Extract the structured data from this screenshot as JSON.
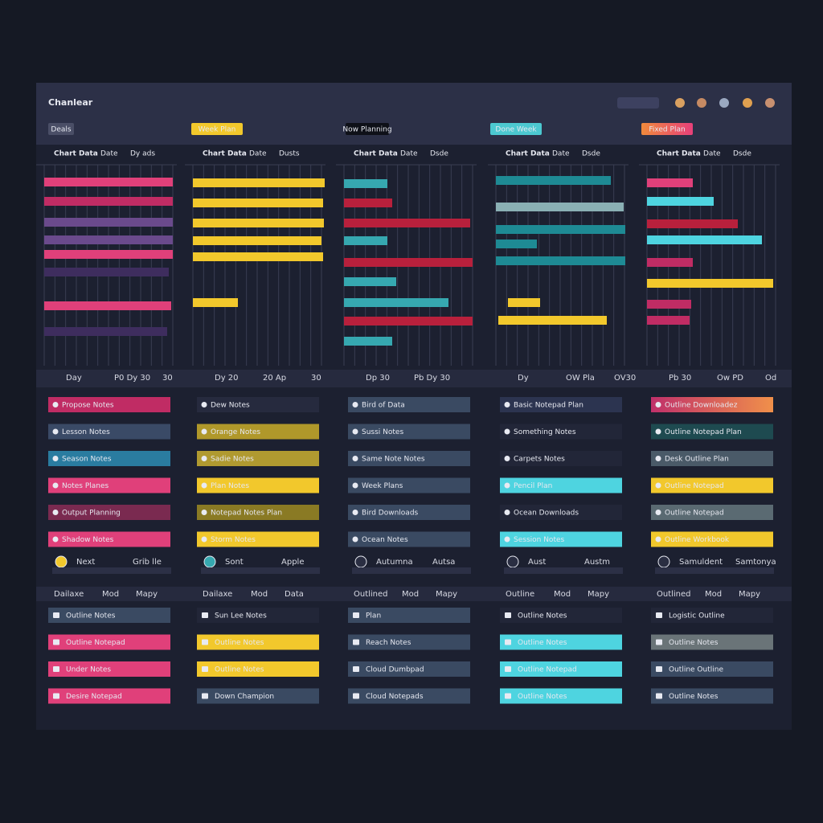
{
  "header": {
    "title": "Chanlear",
    "tabs": [
      "Deals",
      "Week Plan",
      "Now Planning",
      "Done Week",
      "Fixed Plan"
    ]
  },
  "columns": [
    {
      "heading": [
        "Chart Data",
        "Date",
        "Dy ads"
      ],
      "axis": [
        "Day",
        "P0 Dy 30",
        "30"
      ],
      "tasks": [
        "Propose Notes",
        "Lesson Notes",
        "Season Notes",
        "Notes Planes",
        "Output Planning",
        "Shadow Notes"
      ],
      "footer": [
        "Next",
        "Grib lle"
      ],
      "subheader": [
        "Dailaxe",
        "Mod",
        "Mapy"
      ],
      "items": [
        "Outline Notes",
        "Outline Notepad",
        "Under Notes",
        "Desire Notepad"
      ]
    },
    {
      "heading": [
        "Chart Data",
        "Date",
        "Dusts"
      ],
      "axis": [
        "Dy 20",
        "20 Ap",
        "30"
      ],
      "tasks": [
        "Dew Notes",
        "Orange Notes",
        "Sadie Notes",
        "Plan Notes",
        "Notepad Notes Plan",
        "Storm Notes"
      ],
      "footer": [
        "Sont",
        "Apple"
      ],
      "subheader": [
        "Dailaxe",
        "Mod",
        "Data"
      ],
      "items": [
        "Sun Lee Notes",
        "Outline Notes",
        "Outline Notes",
        "Down Champion"
      ]
    },
    {
      "heading": [
        "Chart Data",
        "Date",
        "Dsde"
      ],
      "axis": [
        "Dp 30",
        "Pb Dy 30"
      ],
      "tasks": [
        "Bird of Data",
        "Sussi Notes",
        "Same Note Notes",
        "Week Plans",
        "Bird Downloads",
        "Ocean Notes"
      ],
      "footer": [
        "Autumna",
        "Autsa"
      ],
      "subheader": [
        "Outlined",
        "Mod",
        "Mapy"
      ],
      "items": [
        "Plan",
        "Reach Notes",
        "Cloud Dumbpad",
        "Cloud Notepads"
      ]
    },
    {
      "heading": [
        "Chart Data",
        "Date",
        "Dsde"
      ],
      "axis": [
        "Dy",
        "OW Pla",
        "OV30"
      ],
      "tasks": [
        "Basic Notepad Plan",
        "Something Notes",
        "Carpets Notes",
        "Pencil Plan",
        "Ocean Downloads",
        "Session Notes"
      ],
      "footer": [
        "Aust",
        "Austm"
      ],
      "subheader": [
        "Outline",
        "Mod",
        "Mapy"
      ],
      "items": [
        "Outline Notes",
        "Outline Notes",
        "Outline Notepad",
        "Outline Notes"
      ]
    },
    {
      "heading": [
        "Chart Data",
        "Date",
        "Dsde"
      ],
      "axis": [
        "Pb 30",
        "Ow PD",
        "Od"
      ],
      "tasks": [
        "Outline Downloadez",
        "Outline Notepad Plan",
        "Desk Outline Plan",
        "Outline Notepad",
        "Outline Notepad",
        "Outline Workbook"
      ],
      "footer": [
        "Samuldent",
        "Samtonya"
      ],
      "subheader": [
        "Outlined",
        "Mod",
        "Mapy"
      ],
      "items": [
        "Logistic Outline",
        "Outline Notes",
        "Outline Outline",
        "Outline Notes"
      ]
    }
  ]
}
